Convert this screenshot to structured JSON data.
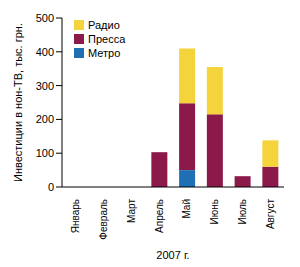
{
  "chart_data": {
    "type": "bar",
    "stacked": true,
    "x_label": "2007 г.",
    "y_label": "Инвестиции в нон-ТВ, тыс. грн.",
    "categories": [
      "Январь",
      "Февраль",
      "Март",
      "Апрель",
      "Май",
      "Июнь",
      "Июль",
      "Август"
    ],
    "series": [
      {
        "name": "Радио",
        "color": "#f5d33a",
        "values": [
          0,
          0,
          0,
          0,
          162,
          140,
          0,
          78
        ]
      },
      {
        "name": "Пресса",
        "color": "#8b1a4a",
        "values": [
          0,
          0,
          0,
          103,
          198,
          215,
          32,
          60
        ]
      },
      {
        "name": "Метро",
        "color": "#1f6fb5",
        "values": [
          0,
          0,
          0,
          0,
          50,
          0,
          0,
          0
        ]
      }
    ],
    "ylim": [
      0,
      500
    ],
    "yticks": [
      0,
      100,
      200,
      300,
      400,
      500
    ],
    "grid": false,
    "legend": "upper left"
  }
}
